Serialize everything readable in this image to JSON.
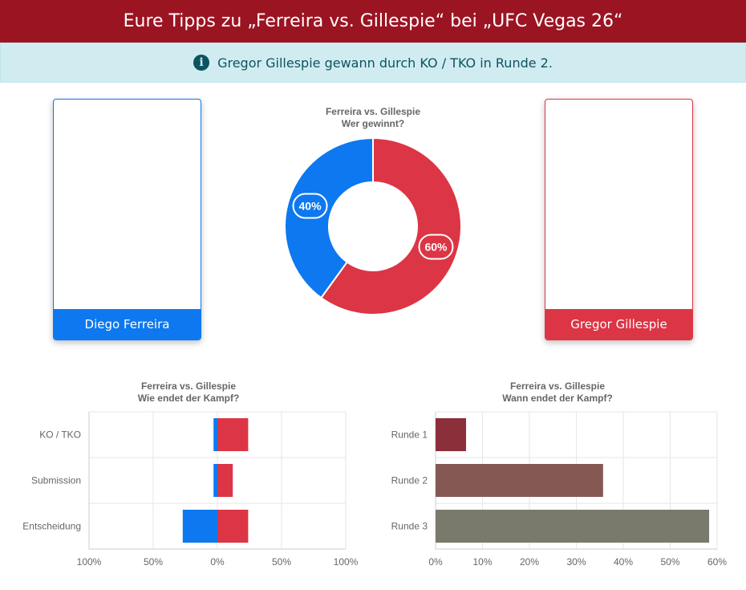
{
  "header": {
    "title": "Eure Tipps zu „Ferreira vs. Gillespie“ bei „UFC Vegas 26“"
  },
  "alert": {
    "text": "Gregor Gillespie gewann durch KO / TKO in Runde 2."
  },
  "fighters": {
    "left": {
      "name": "Diego Ferreira",
      "color": "#0d78f0"
    },
    "right": {
      "name": "Gregor Gillespie",
      "color": "#dc3545"
    }
  },
  "chart_data": [
    {
      "type": "pie",
      "title": "Ferreira vs. Gillespie",
      "subtitle": "Wer gewinnt?",
      "labels": [
        "Diego Ferreira",
        "Gregor Gillespie"
      ],
      "values": [
        40,
        60
      ],
      "data_labels": [
        "40%",
        "60%"
      ],
      "colors": [
        "#0d78f0",
        "#dc3545"
      ]
    },
    {
      "type": "bar",
      "orientation": "horizontal",
      "title": "Ferreira vs. Gillespie",
      "subtitle": "Wie endet der Kampf?",
      "categories": [
        "KO / TKO",
        "Submission",
        "Entscheidung"
      ],
      "series": [
        {
          "values": [
            -3,
            -3,
            -27
          ],
          "color": "#0d78f0"
        },
        {
          "values": [
            24,
            12,
            24
          ],
          "color": "#dc3545"
        }
      ],
      "xlim": [
        -100,
        100
      ],
      "xticks": [
        -100,
        -50,
        0,
        50,
        100
      ],
      "xtick_labels": [
        "100%",
        "50%",
        "0%",
        "50%",
        "100%"
      ],
      "grid": true
    },
    {
      "type": "bar",
      "orientation": "horizontal",
      "title": "Ferreira vs. Gillespie",
      "subtitle": "Wann endet der Kampf?",
      "categories": [
        "Runde 1",
        "Runde 2",
        "Runde 3"
      ],
      "values": [
        6.5,
        35.7,
        58.3
      ],
      "colors": [
        "#8b2f3a",
        "#855853",
        "#7a7a6c"
      ],
      "xlim": [
        0,
        60
      ],
      "xticks": [
        0,
        10,
        20,
        30,
        40,
        50,
        60
      ],
      "xtick_labels": [
        "0%",
        "10%",
        "20%",
        "30%",
        "40%",
        "50%",
        "60%"
      ],
      "grid": true
    }
  ]
}
